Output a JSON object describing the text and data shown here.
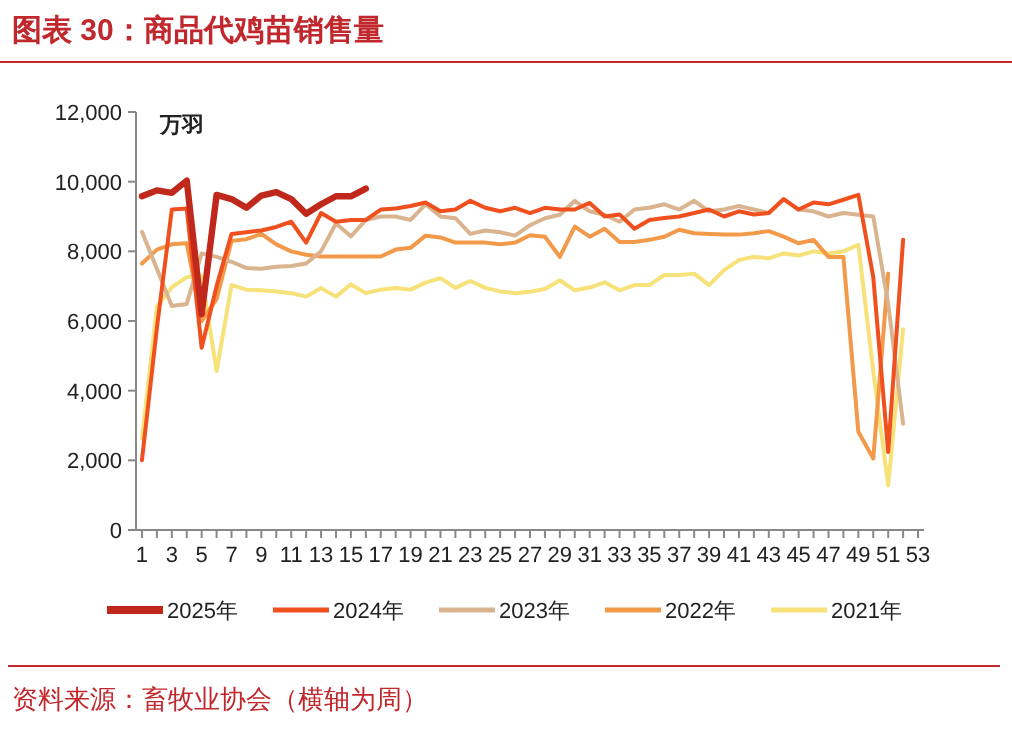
{
  "chart_data": {
    "type": "line",
    "title": "图表 30：商品代鸡苗销售量",
    "ylabel": "万羽",
    "x": [
      1,
      2,
      3,
      4,
      5,
      6,
      7,
      8,
      9,
      10,
      11,
      12,
      13,
      14,
      15,
      16,
      17,
      18,
      19,
      20,
      21,
      22,
      23,
      24,
      25,
      26,
      27,
      28,
      29,
      30,
      31,
      32,
      33,
      34,
      35,
      36,
      37,
      38,
      39,
      40,
      41,
      42,
      43,
      44,
      45,
      46,
      47,
      48,
      49,
      50,
      51,
      52
    ],
    "xlim": [
      0.6,
      53.4
    ],
    "xticks": [
      1,
      {
        "value": 2,
        "label": null
      },
      3,
      {
        "value": 4,
        "label": null
      },
      5,
      {
        "value": 6,
        "label": null
      },
      7,
      {
        "value": 8,
        "label": null
      },
      9,
      {
        "value": 10,
        "label": null
      },
      11,
      {
        "value": 12,
        "label": null
      },
      13,
      {
        "value": 14,
        "label": null
      },
      15,
      {
        "value": 16,
        "label": null
      },
      17,
      {
        "value": 18,
        "label": null
      },
      19,
      {
        "value": 20,
        "label": null
      },
      21,
      {
        "value": 22,
        "label": null
      },
      23,
      {
        "value": 24,
        "label": null
      },
      25,
      {
        "value": 26,
        "label": null
      },
      27,
      {
        "value": 28,
        "label": null
      },
      29,
      {
        "value": 30,
        "label": null
      },
      31,
      {
        "value": 32,
        "label": null
      },
      33,
      {
        "value": 34,
        "label": null
      },
      35,
      {
        "value": 36,
        "label": null
      },
      37,
      {
        "value": 38,
        "label": null
      },
      39,
      {
        "value": 40,
        "label": null
      },
      41,
      {
        "value": 42,
        "label": null
      },
      43,
      {
        "value": 44,
        "label": null
      },
      45,
      {
        "value": 46,
        "label": null
      },
      47,
      {
        "value": 48,
        "label": null
      },
      49,
      {
        "value": 50,
        "label": null
      },
      51,
      {
        "value": 52,
        "label": null
      },
      53
    ],
    "ylim": [
      0,
      12000
    ],
    "yticks": [
      0,
      {
        "value": 2000,
        "label": "2,000"
      },
      {
        "value": 4000,
        "label": "4,000"
      },
      {
        "value": 6000,
        "label": "6,000"
      },
      {
        "value": 8000,
        "label": "8,000"
      },
      {
        "value": 10000,
        "label": "10,000"
      },
      {
        "value": 12000,
        "label": "12,000"
      }
    ],
    "grid": false,
    "legend": "bottom",
    "line_style": "solid",
    "series": [
      {
        "name": "2025年",
        "color": "#c0281c",
        "values": [
          9580,
          9750,
          9680,
          10030,
          6200,
          9620,
          9500,
          9250,
          9600,
          9700,
          9500,
          9080,
          9350,
          9580,
          9580,
          9800,
          null,
          null,
          null,
          null,
          null,
          null,
          null,
          null,
          null,
          null,
          null,
          null,
          null,
          null,
          null,
          null,
          null,
          null,
          null,
          null,
          null,
          null,
          null,
          null,
          null,
          null,
          null,
          null,
          null,
          null,
          null,
          null,
          null,
          null,
          null,
          null
        ]
      },
      {
        "name": "2024年",
        "color": "#f0501e",
        "values": [
          2000,
          5800,
          9200,
          9230,
          5230,
          7000,
          8500,
          8550,
          8600,
          8700,
          8850,
          8250,
          9100,
          8850,
          8900,
          8900,
          9200,
          9230,
          9300,
          9400,
          9150,
          9200,
          9450,
          9250,
          9150,
          9250,
          9100,
          9250,
          9200,
          9200,
          9390,
          9000,
          9060,
          8650,
          8900,
          8960,
          9000,
          9100,
          9200,
          9000,
          9150,
          9060,
          9100,
          9500,
          9200,
          9400,
          9350,
          9480,
          9620,
          7260,
          2240,
          8330
        ]
      },
      {
        "name": "2023年",
        "color": "#d9b48f",
        "values": [
          8560,
          7500,
          6430,
          6490,
          7940,
          7840,
          7700,
          7520,
          7500,
          7560,
          7580,
          7650,
          8000,
          8800,
          8430,
          8900,
          9000,
          9000,
          8900,
          9350,
          9000,
          8950,
          8500,
          8600,
          8550,
          8450,
          8750,
          8950,
          9050,
          9450,
          9150,
          9050,
          8850,
          9200,
          9250,
          9350,
          9200,
          9450,
          9150,
          9200,
          9300,
          9200,
          9100,
          9490,
          9200,
          9150,
          9000,
          9100,
          9050,
          9000,
          6500,
          3050
        ]
      },
      {
        "name": "2022年",
        "color": "#f39a4a",
        "values": [
          7650,
          8050,
          8200,
          8230,
          6000,
          6630,
          8300,
          8350,
          8500,
          8200,
          8000,
          7900,
          7850,
          7850,
          7850,
          7850,
          7850,
          8050,
          8100,
          8450,
          8400,
          8250,
          8250,
          8250,
          8200,
          8250,
          8460,
          8420,
          7840,
          8710,
          8420,
          8650,
          8270,
          8270,
          8330,
          8420,
          8620,
          8520,
          8500,
          8480,
          8480,
          8520,
          8580,
          8420,
          8230,
          8330,
          7840,
          7840,
          2820,
          2050,
          7360,
          null
        ]
      },
      {
        "name": "2021年",
        "color": "#f7e27a",
        "values": [
          2630,
          6400,
          6970,
          7260,
          7300,
          4560,
          7030,
          6900,
          6880,
          6850,
          6800,
          6700,
          6950,
          6700,
          7050,
          6800,
          6900,
          6950,
          6900,
          7100,
          7230,
          6950,
          7150,
          6950,
          6850,
          6800,
          6840,
          6920,
          7170,
          6880,
          6960,
          7110,
          6880,
          7030,
          7030,
          7320,
          7320,
          7360,
          7030,
          7460,
          7750,
          7840,
          7800,
          7940,
          7880,
          8000,
          7940,
          8000,
          8190,
          4560,
          1280,
          5760
        ]
      }
    ],
    "annotations": [
      "资料来源：畜牧业协会（横轴为周）"
    ]
  }
}
